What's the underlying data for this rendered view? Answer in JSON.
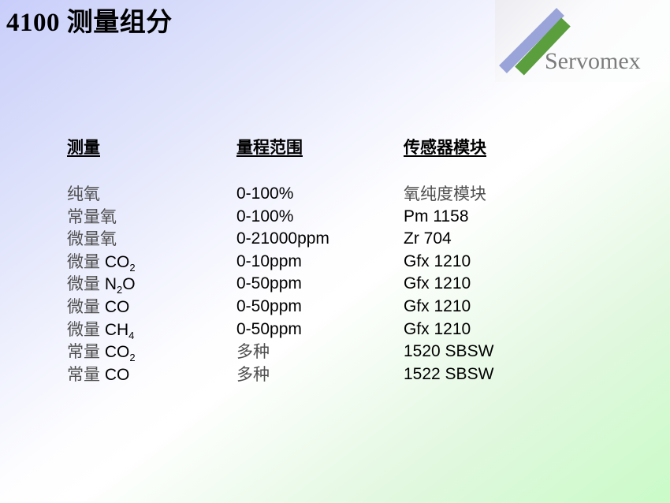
{
  "slide": {
    "title": "4100 测量组分",
    "logo": {
      "text": "Servomex",
      "text_color": "#7b7b7b",
      "stroke_blue": "#9aa4d8",
      "stroke_green": "#5b9e3e"
    },
    "table": {
      "headers": [
        "测量",
        "量程范围",
        "传感器模块"
      ],
      "rows": [
        [
          "纯氧",
          "0-100%",
          "氧纯度模块"
        ],
        [
          "常量氧",
          "0-100%",
          "Pm 1158"
        ],
        [
          "微量氧",
          "0-21000ppm",
          "Zr 704"
        ],
        [
          "微量 CO~2~",
          "0-10ppm",
          "Gfx 1210"
        ],
        [
          "微量 N~2~O",
          "0-50ppm",
          "Gfx 1210"
        ],
        [
          "微量 CO",
          "0-50ppm",
          "Gfx 1210"
        ],
        [
          "微量 CH~4~",
          "0-50ppm",
          "Gfx 1210"
        ],
        [
          "常量 CO~2~",
          "多种",
          "1520 SBSW"
        ],
        [
          "常量 CO",
          "多种",
          "1522 SBSW"
        ]
      ]
    },
    "colors": {
      "bg_top_left": "#c8cefa",
      "bg_middle": "#ffffff",
      "bg_bottom_right": "#cafbc8"
    }
  }
}
